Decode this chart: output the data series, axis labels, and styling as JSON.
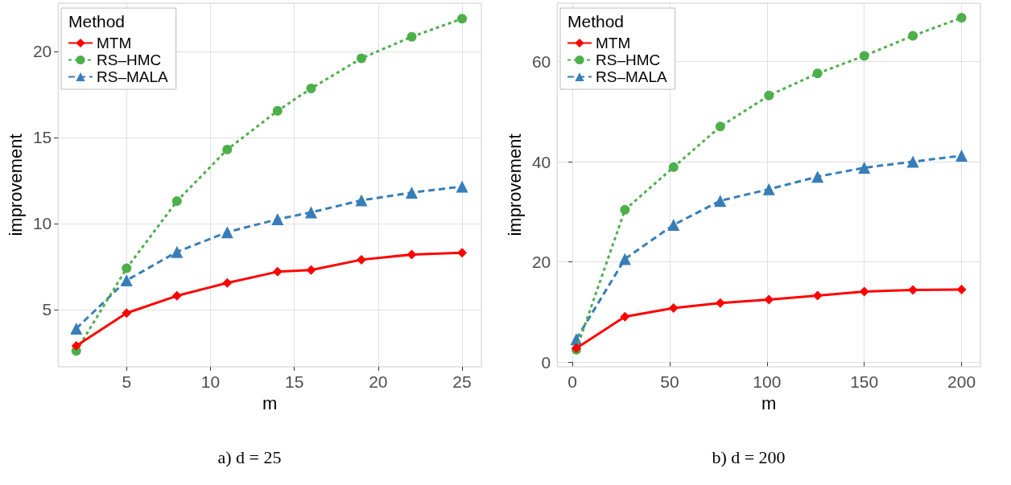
{
  "chart_data": [
    {
      "type": "line",
      "title": "a) d = 25",
      "xlabel": "m",
      "ylabel": "improvement",
      "legend_title": "Method",
      "legend": "top left",
      "grid": true,
      "xlim": [
        0.92,
        26.15
      ],
      "xticks": [
        5,
        10,
        15,
        20,
        25
      ],
      "ylim": [
        1.68,
        22.8
      ],
      "yticks": [
        5,
        10,
        15,
        20
      ],
      "x": [
        2,
        5,
        8,
        11,
        14,
        16,
        19,
        22,
        25
      ],
      "series": [
        {
          "name": "MTM",
          "color": "#ff0000",
          "marker": "diamond",
          "line_style": "solid",
          "values": [
            2.9,
            4.8,
            5.8,
            6.55,
            7.2,
            7.3,
            7.9,
            8.2,
            8.3
          ]
        },
        {
          "name": "RS–HMC",
          "color": "#4daf4a",
          "marker": "circle",
          "line_style": "dotted",
          "values": [
            2.6,
            7.4,
            11.3,
            14.3,
            16.55,
            17.85,
            19.6,
            20.85,
            21.9
          ]
        },
        {
          "name": "RS–MALA",
          "color": "#377eb8",
          "marker": "triangle",
          "line_style": "dashed",
          "values": [
            3.9,
            6.7,
            8.35,
            9.5,
            10.25,
            10.65,
            11.35,
            11.8,
            12.15
          ]
        }
      ]
    },
    {
      "type": "line",
      "title": "b) d = 200",
      "xlabel": "m",
      "ylabel": "improvement",
      "legend_title": "Method",
      "legend": "top left",
      "grid": true,
      "xlim": [
        -7.8,
        209.7
      ],
      "xticks": [
        0,
        50,
        100,
        150,
        200
      ],
      "ylim": [
        -0.9,
        71.6
      ],
      "yticks": [
        0,
        20,
        40,
        60
      ],
      "x": [
        2,
        27,
        52,
        76,
        101,
        126,
        150,
        175,
        200
      ],
      "series": [
        {
          "name": "MTM",
          "color": "#ff0000",
          "marker": "diamond",
          "line_style": "solid",
          "values": [
            2.8,
            9.1,
            10.8,
            11.8,
            12.5,
            13.3,
            14.1,
            14.4,
            14.5
          ]
        },
        {
          "name": "RS–HMC",
          "color": "#4daf4a",
          "marker": "circle",
          "line_style": "dotted",
          "values": [
            2.5,
            30.4,
            38.9,
            47,
            53.2,
            57.6,
            61.1,
            65.1,
            68.7
          ]
        },
        {
          "name": "RS–MALA",
          "color": "#377eb8",
          "marker": "triangle",
          "line_style": "dashed",
          "values": [
            4.6,
            20.6,
            27.4,
            32.2,
            34.5,
            37,
            38.8,
            40,
            41.2
          ]
        }
      ]
    }
  ]
}
